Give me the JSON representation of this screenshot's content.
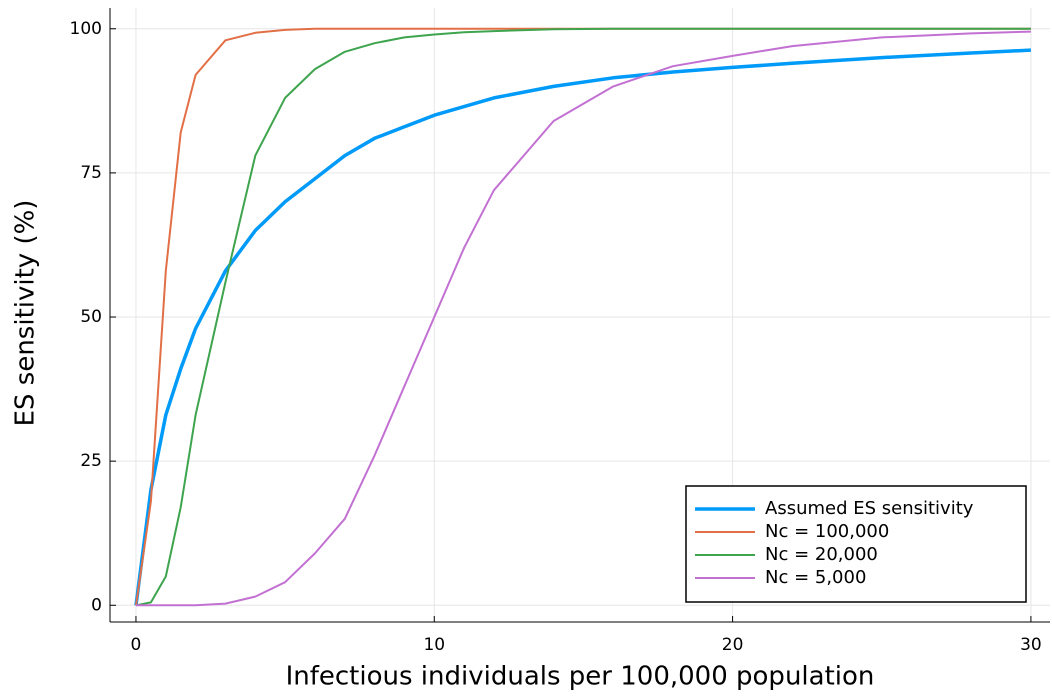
{
  "chart_data": {
    "type": "line",
    "x_label": "Infectious individuals per 100,000 population",
    "y_label": "ES sensitivity (%)",
    "x": [
      0,
      0.5,
      1,
      1.5,
      2,
      3,
      4,
      5,
      6,
      7,
      8,
      9,
      10,
      11,
      12,
      14,
      16,
      18,
      20,
      22,
      25,
      28,
      30
    ],
    "series": [
      {
        "name": "Assumed ES sensitivity",
        "color": "#009af9",
        "width": 3.5,
        "values": [
          0,
          20,
          33,
          41,
          48,
          58,
          65,
          70,
          74,
          78,
          81,
          83,
          85,
          86.5,
          88,
          90,
          91.5,
          92.5,
          93.3,
          94,
          95,
          95.8,
          96.3
        ]
      },
      {
        "name": "Nc = 100,000",
        "color": "#e26f46",
        "width": 2,
        "values": [
          0,
          18,
          58,
          82,
          92,
          98,
          99.3,
          99.8,
          100,
          100,
          100,
          100,
          100,
          100,
          100,
          100,
          100,
          100,
          100,
          100,
          100,
          100,
          100
        ]
      },
      {
        "name": "Nc = 20,000",
        "color": "#3ea44e",
        "width": 2,
        "values": [
          0,
          0.5,
          5,
          17,
          33,
          56,
          78,
          88,
          93,
          96,
          97.5,
          98.5,
          99,
          99.4,
          99.6,
          99.9,
          100,
          100,
          100,
          100,
          100,
          100,
          100
        ]
      },
      {
        "name": "Nc = 5,000",
        "color": "#c271d2",
        "width": 2,
        "values": [
          0,
          0,
          0,
          0,
          0,
          0.3,
          1.5,
          4,
          9,
          15,
          26,
          38,
          50,
          62,
          72,
          84,
          90,
          93.5,
          95.3,
          97,
          98.5,
          99.2,
          99.5
        ]
      }
    ],
    "xlim": [
      -0.87,
      30.64
    ],
    "ylim": [
      -2.9,
      103.6
    ],
    "xticks": [
      0,
      10,
      20,
      30
    ],
    "yticks": [
      0,
      25,
      50,
      75,
      100
    ],
    "grid": true,
    "legend": "bottom-right"
  }
}
